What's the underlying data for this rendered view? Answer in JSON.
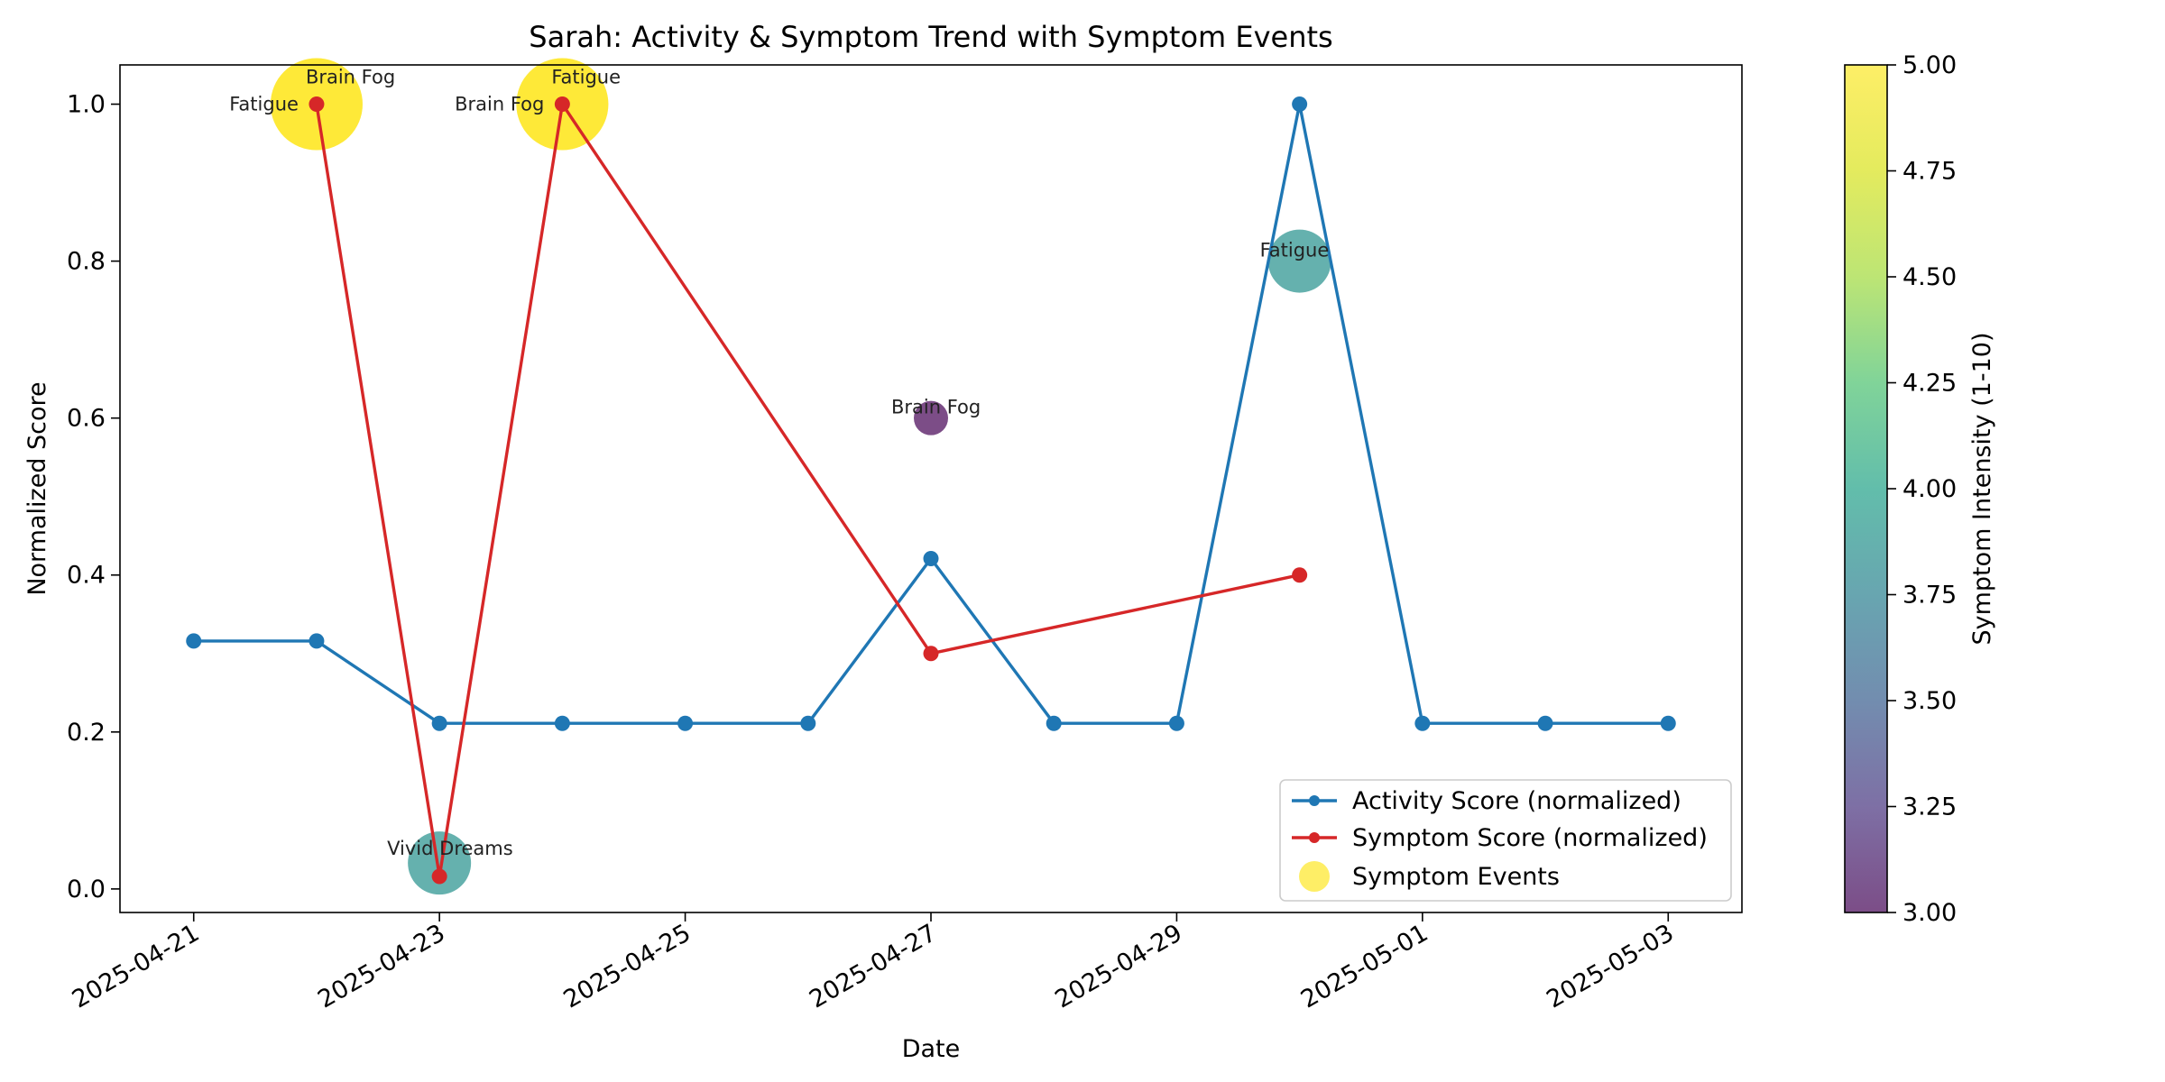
{
  "chart_data": {
    "type": "line",
    "title": "Sarah: Activity & Symptom Trend with Symptom Events",
    "xlabel": "Date",
    "ylabel": "Normalized Score",
    "x_axis": {
      "type": "date",
      "range": [
        "2025-04-20",
        "2025-05-03"
      ],
      "tick_labels": [
        "2025-04-21",
        "2025-04-23",
        "2025-04-25",
        "2025-04-27",
        "2025-04-29",
        "2025-05-01",
        "2025-05-03"
      ]
    },
    "y_axis": {
      "range": [
        -0.03,
        1.05
      ],
      "tick_labels": [
        "0.0",
        "0.2",
        "0.4",
        "0.6",
        "0.8",
        "1.0"
      ]
    },
    "grid": false,
    "legend": {
      "position": "lower right",
      "entries": [
        "Activity Score (normalized)",
        "Symptom Score (normalized)",
        "Symptom Events"
      ]
    },
    "series": [
      {
        "name": "Activity Score (normalized)",
        "color": "#1f77b4",
        "points": [
          [
            "2025-04-21",
            0.316
          ],
          [
            "2025-04-22",
            0.316
          ],
          [
            "2025-04-23",
            0.211
          ],
          [
            "2025-04-24",
            0.211
          ],
          [
            "2025-04-25",
            0.211
          ],
          [
            "2025-04-26",
            0.211
          ],
          [
            "2025-04-27",
            0.421
          ],
          [
            "2025-04-28",
            0.211
          ],
          [
            "2025-04-29",
            0.211
          ],
          [
            "2025-04-30",
            1.0
          ],
          [
            "2025-05-01",
            0.211
          ],
          [
            "2025-05-02",
            0.211
          ],
          [
            "2025-05-03",
            0.211
          ]
        ]
      },
      {
        "name": "Symptom Score (normalized)",
        "color": "#d62728",
        "points": [
          [
            "2025-04-22",
            1.0
          ],
          [
            "2025-04-23",
            0.016
          ],
          [
            "2025-04-24",
            1.0
          ],
          [
            "2025-04-27",
            0.3
          ],
          [
            "2025-04-30",
            0.4
          ]
        ]
      }
    ],
    "symptom_events_name": "Symptom Events",
    "symptom_events": [
      {
        "date": "2025-04-22",
        "y": 1.0,
        "intensity": 5,
        "label": "Fatigue",
        "label_pos": "left"
      },
      {
        "date": "2025-04-22",
        "y": 1.0,
        "intensity": 5,
        "label": "Brain Fog",
        "label_pos": "above"
      },
      {
        "date": "2025-04-23",
        "y": 0.033,
        "intensity": 4,
        "label": "Vivid Dreams",
        "label_pos": "above"
      },
      {
        "date": "2025-04-24",
        "y": 1.0,
        "intensity": 5,
        "label": "Brain Fog",
        "label_pos": "left"
      },
      {
        "date": "2025-04-24",
        "y": 1.0,
        "intensity": 5,
        "label": "Fatigue",
        "label_pos": "above"
      },
      {
        "date": "2025-04-27",
        "y": 0.6,
        "intensity": 3,
        "label": "Brain Fog",
        "label_pos": "center"
      },
      {
        "date": "2025-04-30",
        "y": 0.8,
        "intensity": 4,
        "label": "Fatigue",
        "label_pos": "center"
      }
    ],
    "colorbar": {
      "label": "Symptom Intensity (1-10)",
      "colormap": "viridis",
      "range": [
        3.0,
        5.0
      ],
      "tick_labels": [
        "3.00",
        "3.25",
        "3.50",
        "3.75",
        "4.00",
        "4.25",
        "4.50",
        "4.75",
        "5.00"
      ]
    }
  }
}
